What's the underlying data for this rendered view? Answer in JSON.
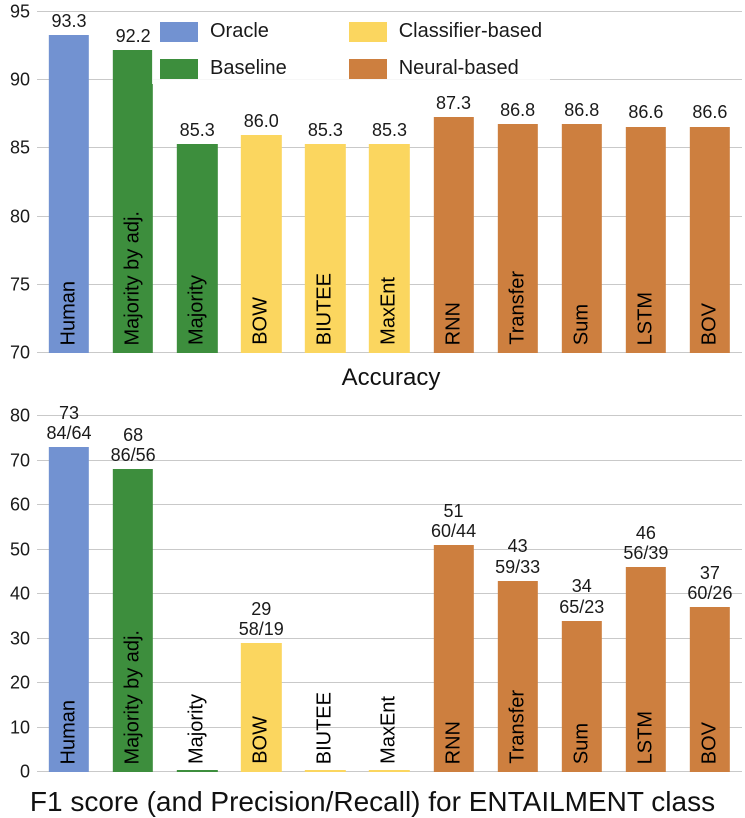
{
  "colors": {
    "oracle": "#7292d1",
    "baseline": "#3d8e3d",
    "classifier": "#fbd65f",
    "neural": "#cd7f3f",
    "grid": "#c9c9c9",
    "text": "#1a1a1a"
  },
  "chart_data": [
    {
      "type": "bar",
      "title": "Accuracy",
      "categories": [
        "Human",
        "Majority by adj.",
        "Majority",
        "BOW",
        "BIUTEE",
        "MaxEnt",
        "RNN",
        "Transfer",
        "Sum",
        "LSTM",
        "BOV"
      ],
      "values": [
        93.3,
        92.2,
        85.3,
        86.0,
        85.3,
        85.3,
        87.3,
        86.8,
        86.8,
        86.6,
        86.6
      ],
      "value_labels": [
        "93.3",
        "92.2",
        "85.3",
        "86.0",
        "85.3",
        "85.3",
        "87.3",
        "86.8",
        "86.8",
        "86.6",
        "86.6"
      ],
      "groups": [
        "oracle",
        "baseline",
        "baseline",
        "classifier",
        "classifier",
        "classifier",
        "neural",
        "neural",
        "neural",
        "neural",
        "neural"
      ],
      "ylim": [
        70,
        95
      ],
      "yticks": [
        70,
        75,
        80,
        85,
        90,
        95
      ],
      "grid": true,
      "legend_position": "upper-left-inside",
      "legend": [
        {
          "label": "Oracle",
          "group": "oracle"
        },
        {
          "label": "Baseline",
          "group": "baseline"
        },
        {
          "label": "Classifier-based",
          "group": "classifier"
        },
        {
          "label": "Neural-based",
          "group": "neural"
        }
      ]
    },
    {
      "type": "bar",
      "title": "F1 score (and Precision/Recall) for ENTAILMENT class",
      "categories": [
        "Human",
        "Majority by adj.",
        "Majority",
        "BOW",
        "BIUTEE",
        "MaxEnt",
        "RNN",
        "Transfer",
        "Sum",
        "LSTM",
        "BOV"
      ],
      "values": [
        73,
        68,
        0,
        29,
        0,
        0,
        51,
        43,
        34,
        46,
        37
      ],
      "value_labels": [
        "73",
        "68",
        "",
        "29",
        "",
        "",
        "51",
        "43",
        "34",
        "46",
        "37"
      ],
      "pr_labels": [
        "84/64",
        "86/56",
        "",
        "58/19",
        "",
        "",
        "60/44",
        "59/33",
        "65/23",
        "56/39",
        "60/26"
      ],
      "groups": [
        "oracle",
        "baseline",
        "baseline",
        "classifier",
        "classifier",
        "classifier",
        "neural",
        "neural",
        "neural",
        "neural",
        "neural"
      ],
      "ylim": [
        0,
        80
      ],
      "yticks": [
        0,
        10,
        20,
        30,
        40,
        50,
        60,
        70,
        80
      ],
      "grid": true
    }
  ]
}
